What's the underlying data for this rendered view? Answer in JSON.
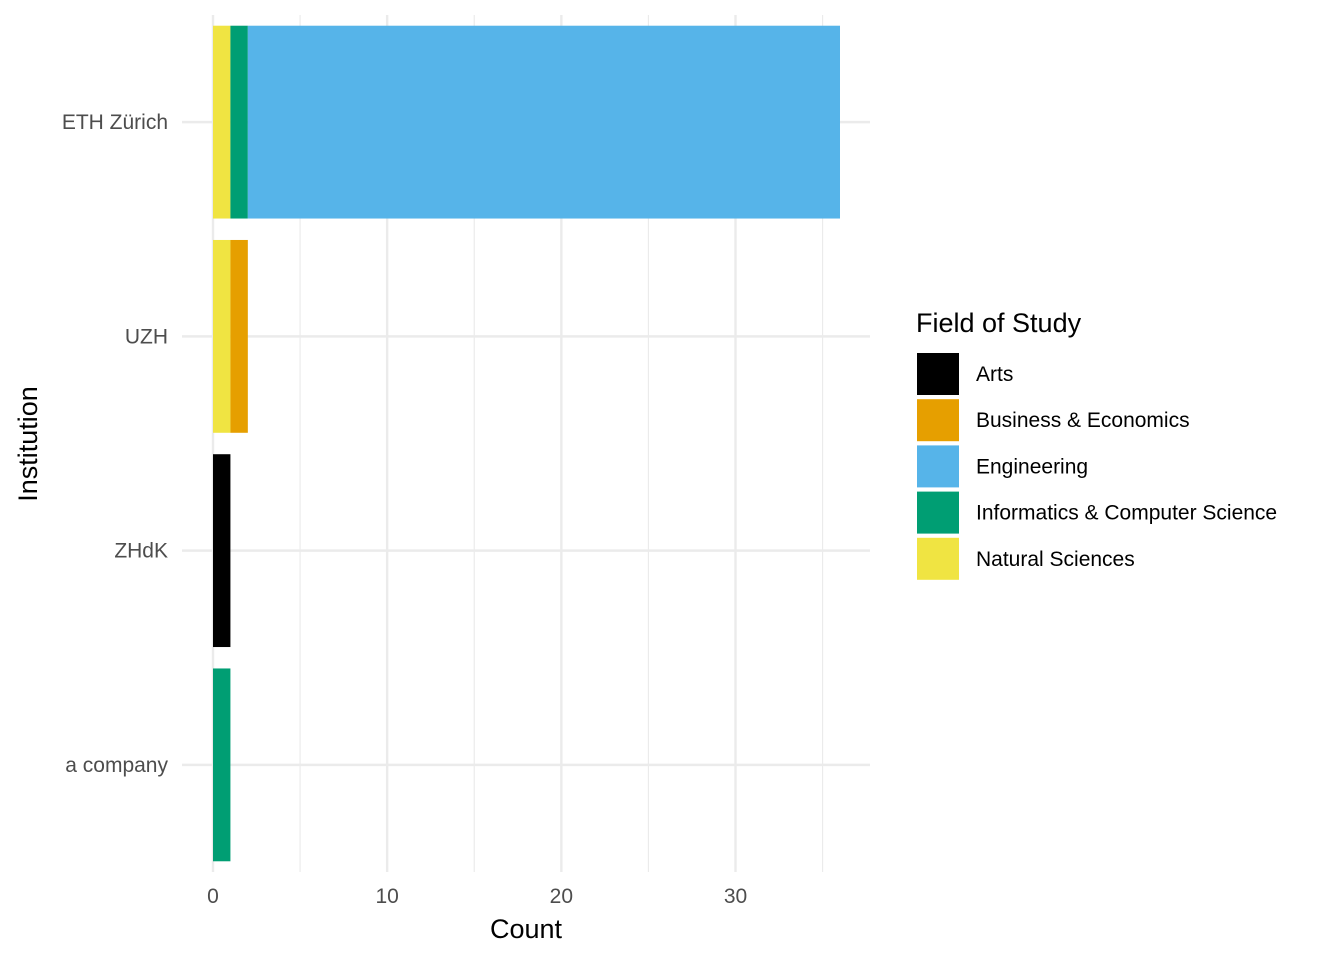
{
  "chart_data": {
    "type": "bar",
    "orientation": "horizontal",
    "stacked": true,
    "title": "",
    "xlabel": "Count",
    "ylabel": "Institution",
    "categories": [
      "ETH Zürich",
      "UZH",
      "ZHdK",
      "a company"
    ],
    "xlim": [
      0,
      37.5
    ],
    "x_ticks": [
      0,
      10,
      20,
      30
    ],
    "grid": true,
    "legend": {
      "title": "Field of Study",
      "position": "right"
    },
    "series": [
      {
        "name": "Arts",
        "color": "#000000",
        "values": [
          0,
          0,
          1,
          0
        ]
      },
      {
        "name": "Business & Economics",
        "color": "#E69F00",
        "values": [
          0,
          1,
          0,
          0
        ]
      },
      {
        "name": "Engineering",
        "color": "#56B4E9",
        "values": [
          34,
          0,
          0,
          0
        ]
      },
      {
        "name": "Informatics & Computer Science",
        "color": "#009E73",
        "values": [
          1,
          0,
          0,
          1
        ]
      },
      {
        "name": "Natural Sciences",
        "color": "#F0E442",
        "values": [
          1,
          1,
          0,
          0
        ]
      }
    ],
    "stack_order": [
      "Natural Sciences",
      "Informatics & Computer Science",
      "Business & Economics",
      "Engineering",
      "Arts"
    ]
  }
}
